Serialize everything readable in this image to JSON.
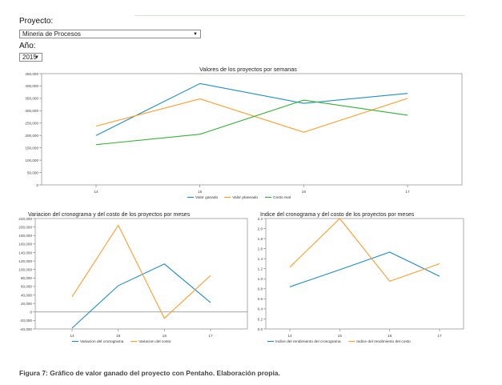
{
  "form": {
    "project_label": "Proyecto:",
    "project_value": "Mineria de Procesos",
    "year_label": "Año:",
    "year_value": "2015"
  },
  "caption": "Figura 7: Gráfico de valor ganado del proyecto con Pentaho. Elaboración propia.",
  "colors": {
    "blue": "#1f8dc1",
    "orange": "#ff9d2d",
    "green": "#33b033"
  },
  "chart_data": [
    {
      "type": "line",
      "title": "Valores de los proyectos por semanas",
      "x": [
        "14",
        "15",
        "16",
        "17"
      ],
      "yticks": [
        "0",
        "50,000",
        "100,000",
        "150,000",
        "200,000",
        "250,000",
        "300,000",
        "350,000",
        "400,000",
        "450,000"
      ],
      "ylim": [
        0,
        450000
      ],
      "legend_position": "bottom",
      "series": [
        {
          "name": "Valor ganado",
          "color": "#1f8dc1",
          "values": [
            200000,
            410000,
            330000,
            370000
          ]
        },
        {
          "name": "Valor planeado",
          "color": "#ff9d2d",
          "values": [
            238000,
            348000,
            213000,
            350000
          ]
        },
        {
          "name": "Costo real",
          "color": "#33b033",
          "values": [
            163000,
            205000,
            343000,
            282000
          ]
        }
      ]
    },
    {
      "type": "line",
      "title": "Variacion del cronograma y del costo de los proyectos por meses",
      "x": [
        "14",
        "15",
        "16",
        "17"
      ],
      "yticks": [
        "-40,000",
        "-20,000",
        "0",
        "20,000",
        "40,000",
        "60,000",
        "80,000",
        "100,000",
        "120,000",
        "140,000",
        "160,000",
        "180,000",
        "200,000",
        "220,000"
      ],
      "ylim": [
        -40000,
        220000
      ],
      "zero_line": true,
      "legend_position": "bottom",
      "series": [
        {
          "name": "Variacion del cronograma",
          "color": "#1f8dc1",
          "values": [
            -38000,
            62000,
            113000,
            22000
          ]
        },
        {
          "name": "Variacion del costo",
          "color": "#ff9d2d",
          "values": [
            36000,
            204000,
            -15000,
            86000
          ]
        }
      ]
    },
    {
      "type": "line",
      "title": "Indice del cronograma y del costo de los proyectos por meses",
      "x": [
        "14",
        "15",
        "16",
        "17"
      ],
      "yticks": [
        "0.0",
        "0.2",
        "0.4",
        "0.6",
        "0.8",
        "1.0",
        "1.2",
        "1.4",
        "1.6",
        "1.8",
        "2.0",
        "2.2"
      ],
      "ylim": [
        0,
        2.2
      ],
      "legend_position": "bottom",
      "series": [
        {
          "name": "Indice del rendimiento del cronograma",
          "color": "#1f8dc1",
          "values": [
            0.84,
            1.18,
            1.53,
            1.05
          ]
        },
        {
          "name": "Indice del rendimiento del costo",
          "color": "#ff9d2d",
          "values": [
            1.23,
            2.2,
            0.95,
            1.3
          ]
        }
      ]
    }
  ]
}
